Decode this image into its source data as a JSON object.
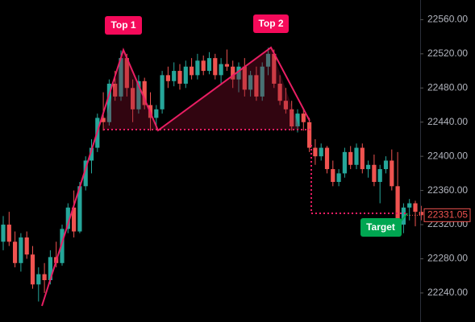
{
  "chart_data": {
    "type": "candlestick",
    "up_color": "#26a69a",
    "down_color": "#ef5350",
    "open": [
      22300,
      22320,
      22300,
      22275,
      22305,
      22285,
      22250,
      22262,
      22255,
      22282,
      22275,
      22315,
      22340,
      22312,
      22365,
      22395,
      22410,
      22445,
      22440,
      22485,
      22470,
      22515,
      22480,
      22455,
      22488,
      22460,
      22445,
      22455,
      22495,
      22488,
      22500,
      22485,
      22505,
      22495,
      22512,
      22500,
      22515,
      22495,
      22508,
      22505,
      22490,
      22505,
      22478,
      22495,
      22470,
      22505,
      22520,
      22485,
      22465,
      22455,
      22435,
      22450,
      22440,
      22410,
      22400,
      22410,
      22385,
      22370,
      22380,
      22405,
      22390,
      22410,
      22385,
      22390,
      22370,
      22385,
      22395,
      22365,
      22320,
      22340,
      22345,
      22335
    ],
    "high": [
      22330,
      22335,
      22312,
      22310,
      22312,
      22295,
      22270,
      22275,
      22290,
      22300,
      22320,
      22345,
      22360,
      22370,
      22400,
      22420,
      22450,
      22475,
      22490,
      22500,
      22524,
      22520,
      22490,
      22495,
      22492,
      22475,
      22460,
      22500,
      22505,
      22510,
      22508,
      22512,
      22515,
      22520,
      22518,
      22522,
      22520,
      22515,
      22525,
      22512,
      22510,
      22515,
      22500,
      22505,
      22510,
      22527,
      22525,
      22495,
      22480,
      22465,
      22455,
      22455,
      22445,
      22420,
      22415,
      22412,
      22395,
      22385,
      22410,
      22412,
      22415,
      22415,
      22395,
      22402,
      22390,
      22400,
      22408,
      22405,
      22345,
      22350,
      22348,
      22342
    ],
    "low": [
      22290,
      22295,
      22270,
      22265,
      22280,
      22245,
      22230,
      22240,
      22250,
      22270,
      22272,
      22310,
      22305,
      22310,
      22360,
      22380,
      22405,
      22430,
      22436,
      22465,
      22465,
      22470,
      22440,
      22450,
      22455,
      22430,
      22432,
      22450,
      22480,
      22482,
      22478,
      22480,
      22490,
      22490,
      22495,
      22496,
      22490,
      22485,
      22500,
      22480,
      22475,
      22470,
      22470,
      22465,
      22465,
      22495,
      22480,
      22460,
      22450,
      22430,
      22428,
      22430,
      22405,
      22390,
      22395,
      22380,
      22365,
      22365,
      22375,
      22385,
      22385,
      22380,
      22375,
      22365,
      22345,
      22380,
      22360,
      22315,
      22310,
      22325,
      22318,
      22325
    ],
    "close": [
      22320,
      22300,
      22275,
      22305,
      22285,
      22250,
      22262,
      22255,
      22282,
      22275,
      22315,
      22340,
      22312,
      22365,
      22395,
      22410,
      22445,
      22440,
      22485,
      22470,
      22515,
      22480,
      22455,
      22488,
      22460,
      22445,
      22455,
      22495,
      22488,
      22500,
      22485,
      22505,
      22495,
      22512,
      22500,
      22515,
      22495,
      22508,
      22505,
      22490,
      22505,
      22478,
      22495,
      22470,
      22505,
      22520,
      22485,
      22465,
      22455,
      22435,
      22450,
      22440,
      22410,
      22400,
      22410,
      22385,
      22370,
      22380,
      22405,
      22390,
      22410,
      22385,
      22390,
      22370,
      22385,
      22395,
      22365,
      22320,
      22340,
      22345,
      22335,
      22331.05
    ],
    "ylim": [
      22206,
      22583
    ],
    "yticks": [
      {
        "value": 22240,
        "label": "22240.00"
      },
      {
        "value": 22280,
        "label": "22280.00"
      },
      {
        "value": 22320,
        "label": "22320.00"
      },
      {
        "value": 22360,
        "label": "22360.00"
      },
      {
        "value": 22400,
        "label": "22400.00"
      },
      {
        "value": 22440,
        "label": "22440.00"
      },
      {
        "value": 22480,
        "label": "22480.00"
      },
      {
        "value": 22520,
        "label": "22520.00"
      },
      {
        "value": 22560,
        "label": "22560.00"
      }
    ],
    "annotations": [
      "Top 1",
      "Top 2",
      "Target"
    ]
  }
}
